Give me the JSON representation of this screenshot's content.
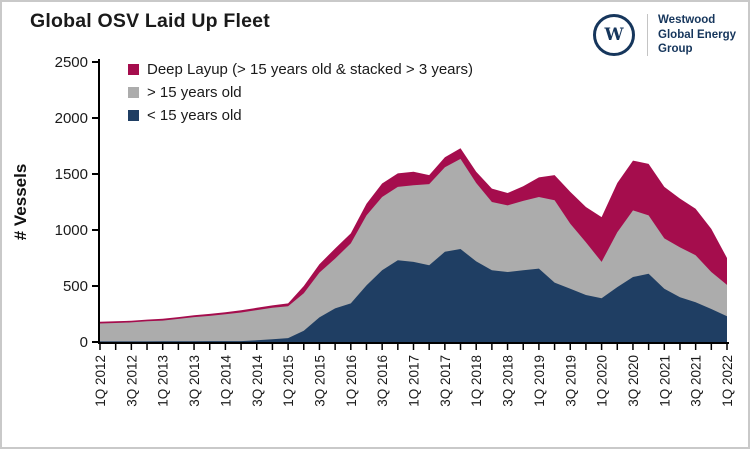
{
  "header": {
    "title": "Global OSV Laid Up Fleet",
    "logo": {
      "monogram": "W",
      "line1": "Westwood",
      "line2": "Global Energy",
      "line3": "Group"
    }
  },
  "colors": {
    "deep_layup": "#a50d4d",
    "over_15": "#acacac",
    "under_15": "#1f3e63",
    "axis": "#000000",
    "text": "#1a1a1a",
    "logo_navy": "#16365c",
    "frame_border": "#c9c9c9"
  },
  "chart_data": {
    "type": "area",
    "stacked": true,
    "title": "Global OSV Laid Up Fleet",
    "xlabel": "",
    "ylabel": "# Vessels",
    "ylim": [
      0,
      2500
    ],
    "ytick_interval": 500,
    "x_label_every": 2,
    "grid": false,
    "legend_position": "top-left-inside",
    "legend_order": [
      2,
      1,
      0
    ],
    "categories": [
      "1Q 2012",
      "2Q 2012",
      "3Q 2012",
      "4Q 2012",
      "1Q 2013",
      "2Q 2013",
      "3Q 2013",
      "4Q 2013",
      "1Q 2014",
      "2Q 2014",
      "3Q 2014",
      "4Q 2014",
      "1Q 2015",
      "2Q 2015",
      "3Q 2015",
      "4Q 2015",
      "1Q 2016",
      "2Q 2016",
      "3Q 2016",
      "4Q 2016",
      "1Q 2017",
      "2Q 2017",
      "3Q 2017",
      "4Q 2017",
      "1Q 2018",
      "2Q 2018",
      "3Q 2018",
      "4Q 2018",
      "1Q 2019",
      "2Q 2019",
      "3Q 2019",
      "4Q 2019",
      "1Q 2020",
      "2Q 2020",
      "3Q 2020",
      "4Q 2020",
      "1Q 2021",
      "2Q 2021",
      "3Q 2021",
      "4Q 2021",
      "1Q 2022"
    ],
    "series": [
      {
        "name": "< 15 years old",
        "color": "#1f3e63",
        "values": [
          5,
          5,
          5,
          5,
          6,
          6,
          7,
          8,
          8,
          8,
          15,
          25,
          35,
          100,
          220,
          300,
          345,
          505,
          640,
          730,
          715,
          685,
          805,
          830,
          720,
          640,
          625,
          640,
          655,
          530,
          475,
          420,
          390,
          490,
          580,
          610,
          475,
          400,
          355,
          295,
          230
        ]
      },
      {
        "name": "> 15 years old",
        "color": "#acacac",
        "values": [
          160,
          165,
          170,
          180,
          185,
          200,
          215,
          225,
          240,
          255,
          270,
          280,
          285,
          335,
          400,
          445,
          535,
          625,
          655,
          655,
          685,
          725,
          755,
          805,
          700,
          610,
          595,
          620,
          640,
          735,
          580,
          470,
          325,
          490,
          595,
          520,
          450,
          445,
          420,
          330,
          280
        ]
      },
      {
        "name": "Deep Layup (> 15 years old & stacked > 3 years)",
        "color": "#a50d4d",
        "values": [
          15,
          15,
          15,
          15,
          16,
          16,
          16,
          18,
          18,
          20,
          20,
          22,
          25,
          65,
          75,
          90,
          90,
          105,
          120,
          120,
          120,
          80,
          90,
          95,
          100,
          120,
          110,
          130,
          175,
          225,
          285,
          315,
          400,
          440,
          445,
          460,
          460,
          435,
          415,
          385,
          240
        ]
      }
    ]
  }
}
